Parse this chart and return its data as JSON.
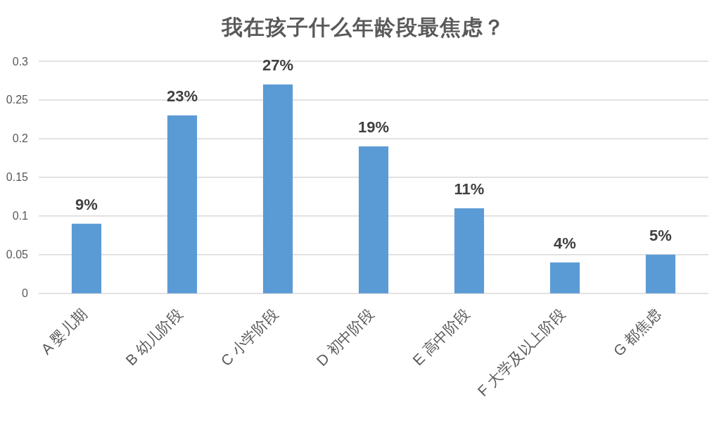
{
  "chart_data": {
    "type": "bar",
    "title": "我在孩子什么年龄段最焦虑？",
    "categories": [
      "A 婴儿期",
      "B 幼儿阶段",
      "C 小学阶段",
      "D 初中阶段",
      "E 高中阶段",
      "F 大学及以上阶段",
      "G 都焦虑"
    ],
    "values": [
      0.09,
      0.23,
      0.27,
      0.19,
      0.11,
      0.04,
      0.05
    ],
    "value_labels": [
      "9%",
      "23%",
      "27%",
      "19%",
      "11%",
      "4%",
      "5%"
    ],
    "color": "#5b9bd5",
    "ylim": [
      0,
      0.3
    ],
    "yticks": [
      0,
      0.05,
      0.1,
      0.15,
      0.2,
      0.25,
      0.3
    ],
    "grid": "y"
  }
}
